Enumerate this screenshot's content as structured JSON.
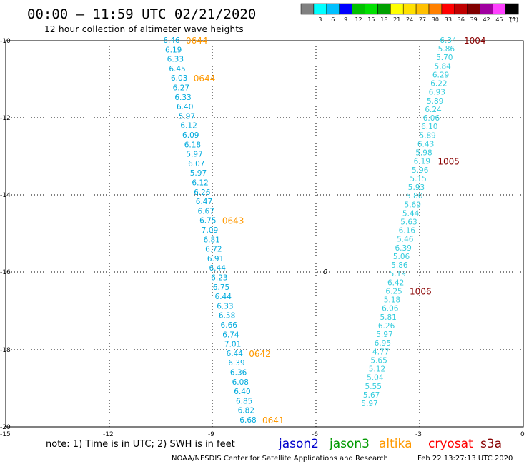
{
  "header": {
    "title": "00:00 – 11:59 UTC 02/21/2020",
    "subtitle": "12 hour collection of altimeter wave heights"
  },
  "legend": {
    "unit": "(ft)",
    "swatches": [
      {
        "label": "",
        "color": "#808080"
      },
      {
        "label": "3",
        "color": "#00ffff"
      },
      {
        "label": "6",
        "color": "#00c0ff"
      },
      {
        "label": "9",
        "color": "#0000ff"
      },
      {
        "label": "12",
        "color": "#00c000"
      },
      {
        "label": "15",
        "color": "#00e000"
      },
      {
        "label": "18",
        "color": "#00a000"
      },
      {
        "label": "21",
        "color": "#ffff00"
      },
      {
        "label": "24",
        "color": "#ffe000"
      },
      {
        "label": "27",
        "color": "#ffc000"
      },
      {
        "label": "30",
        "color": "#ff8000"
      },
      {
        "label": "33",
        "color": "#ff0000"
      },
      {
        "label": "36",
        "color": "#c00000"
      },
      {
        "label": "39",
        "color": "#800000"
      },
      {
        "label": "42",
        "color": "#a000a0"
      },
      {
        "label": "45",
        "color": "#ff40ff"
      },
      {
        "label": "70",
        "color": "#000000"
      }
    ]
  },
  "map": {
    "lat_labels": [
      "-10",
      "-12",
      "-14",
      "-16",
      "-18",
      "-20"
    ],
    "corner_label": "-15",
    "lon_labels": [
      "-12",
      "-9",
      "-6",
      "-3",
      "0"
    ],
    "center_marker": "0"
  },
  "track_left": {
    "value_color": "#00aadd",
    "values": [
      "6.46",
      "6.19",
      "6.33",
      "6.45",
      "6.03",
      "6.27",
      "6.33",
      "6.40",
      "5.97",
      "6.12",
      "6.09",
      "6.18",
      "5.97",
      "6.07",
      "5.97",
      "6.12",
      "6.26",
      "6.47",
      "6.67",
      "6.75",
      "7.09",
      "6.81",
      "6.72",
      "6.91",
      "6.44",
      "6.23",
      "6.75",
      "6.44",
      "6.33",
      "6.58",
      "6.66",
      "6.74",
      "7.01",
      "6.44",
      "6.39",
      "6.36",
      "6.08",
      "6.40",
      "6.85",
      "6.82",
      "6.68"
    ],
    "times": [
      "0644",
      "0644",
      "0643",
      "0642",
      "0641"
    ],
    "time_color": "#ff9900"
  },
  "track_right": {
    "value_color": "#33ccdd",
    "values": [
      "6.34",
      "5.86",
      "5.70",
      "5.84",
      "6.29",
      "6.22",
      "6.93",
      "5.89",
      "6.24",
      "6.06",
      "6.10",
      "5.89",
      "6.43",
      "5.98",
      "6.19",
      "5.96",
      "5.15",
      "5.93",
      "5.80",
      "5.69",
      "5.44",
      "5.63",
      "6.16",
      "5.46",
      "6.39",
      "5.06",
      "5.86",
      "5.19",
      "6.42",
      "6.25",
      "5.18",
      "6.06",
      "5.81",
      "6.26",
      "5.97",
      "6.95",
      "4.77",
      "5.65",
      "5.12",
      "5.04",
      "5.55",
      "5.67",
      "5.97"
    ],
    "times": [
      "1004",
      "1005",
      "1006"
    ],
    "time_color": "#880000"
  },
  "note": {
    "text": "note:  1) Time is in UTC;  2) SWH is in feet",
    "satellites": [
      {
        "name": "jason2",
        "color": "#0000cc"
      },
      {
        "name": "jason3",
        "color": "#009900"
      },
      {
        "name": "altika",
        "color": "#ff9900"
      },
      {
        "name": "cryosat",
        "color": "#ff0000"
      },
      {
        "name": "s3a",
        "color": "#880000"
      }
    ]
  },
  "footer": {
    "credit": "NOAA/NESDIS Center for Satellite Applications and Research",
    "generated": "Feb 22 13:27:13 UTC 2020"
  }
}
